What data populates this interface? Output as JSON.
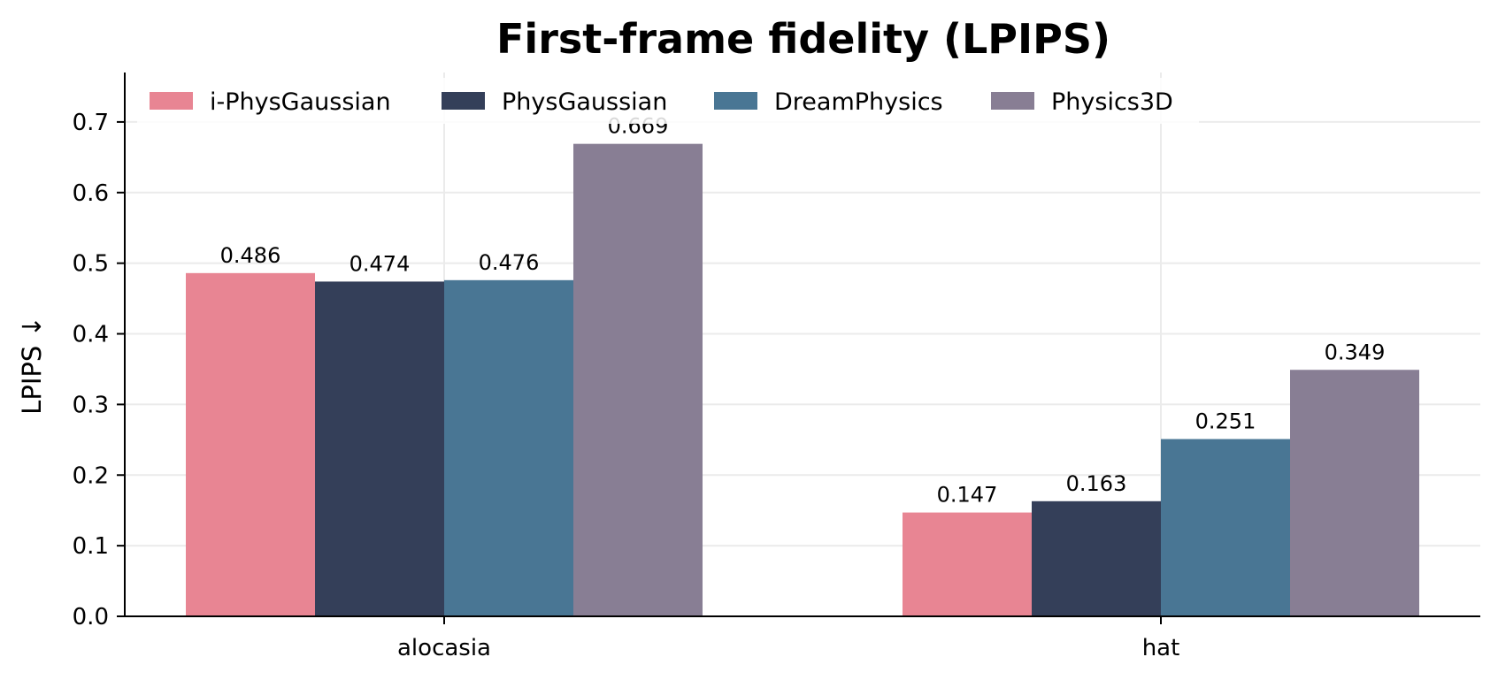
{
  "chart_data": {
    "type": "bar",
    "title": "First-frame fidelity (LPIPS)",
    "xlabel": "",
    "ylabel": "LPIPS ↓",
    "categories": [
      "alocasia",
      "hat"
    ],
    "series": [
      {
        "name": "i-PhysGaussian",
        "color": "#e88593",
        "values": [
          0.486,
          0.147
        ]
      },
      {
        "name": "PhysGaussian",
        "color": "#343f59",
        "values": [
          0.474,
          0.163
        ]
      },
      {
        "name": "DreamPhysics",
        "color": "#497694",
        "values": [
          0.476,
          0.251
        ]
      },
      {
        "name": "Physics3D",
        "color": "#887e94",
        "values": [
          0.669,
          0.349
        ]
      }
    ],
    "ylim": [
      0,
      0.77
    ],
    "yticks": [
      "0.0",
      "0.1",
      "0.2",
      "0.3",
      "0.4",
      "0.5",
      "0.6",
      "0.7"
    ],
    "grid": true,
    "legend_position": "top-left"
  }
}
